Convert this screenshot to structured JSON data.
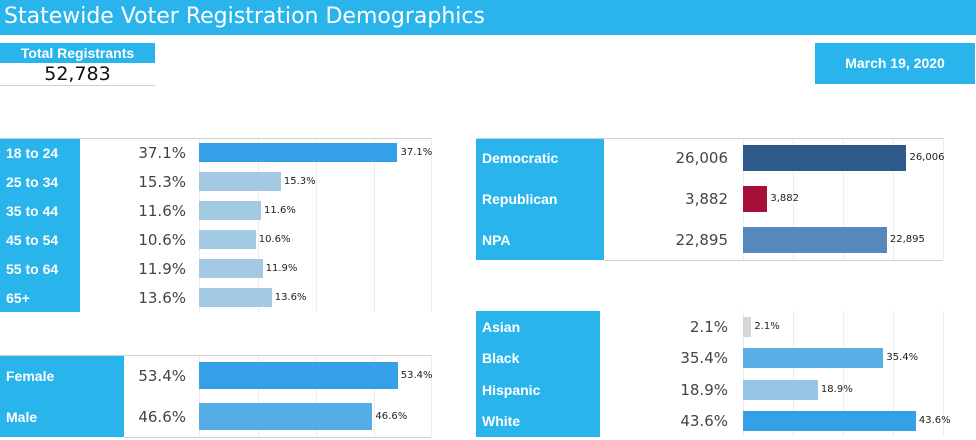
{
  "header": {
    "title": "Statewide Voter Registration Demographics",
    "total_label": "Total Registrants",
    "total_value": "52,783",
    "date": "March 19, 2020"
  },
  "chart_data": [
    {
      "type": "bar",
      "categories": [
        "18 to 24",
        "25 to 34",
        "35 to 44",
        "45 to 54",
        "55 to 64",
        "65+"
      ],
      "values": [
        37.1,
        15.3,
        11.6,
        10.6,
        11.9,
        13.6
      ],
      "value_labels": [
        "37.1%",
        "15.3%",
        "11.6%",
        "10.6%",
        "11.9%",
        "13.6%"
      ],
      "colors": [
        "#33a0e8",
        "#a3cae2",
        "#a3cae2",
        "#a3cae2",
        "#a3cae2",
        "#a3cae2"
      ],
      "xlim": [
        0,
        40
      ],
      "grid": true
    },
    {
      "type": "bar",
      "categories": [
        "Female",
        "Male"
      ],
      "values": [
        53.4,
        46.6
      ],
      "value_labels": [
        "53.4%",
        "46.6%"
      ],
      "colors": [
        "#33a0e8",
        "#55ade6"
      ],
      "xlim": [
        0,
        57.5
      ],
      "grid": true
    },
    {
      "type": "bar",
      "categories": [
        "Democratic",
        "Republican",
        "NPA"
      ],
      "values": [
        26006,
        3882,
        22895
      ],
      "value_labels": [
        "26,006",
        "3,882",
        "22,895"
      ],
      "colors": [
        "#2e5a8a",
        "#a8103c",
        "#5588bb"
      ],
      "xlim": [
        0,
        28000
      ],
      "grid": true
    },
    {
      "type": "bar",
      "categories": [
        "Asian",
        "Black",
        "Hispanic",
        "White"
      ],
      "values": [
        2.1,
        35.4,
        18.9,
        43.6
      ],
      "value_labels": [
        "2.1%",
        "35.4%",
        "18.9%",
        "43.6%"
      ],
      "colors": [
        "#d3d7da",
        "#58b0e6",
        "#95c6e6",
        "#33a0e8"
      ],
      "xlim": [
        0,
        45.4
      ],
      "grid": true
    }
  ]
}
